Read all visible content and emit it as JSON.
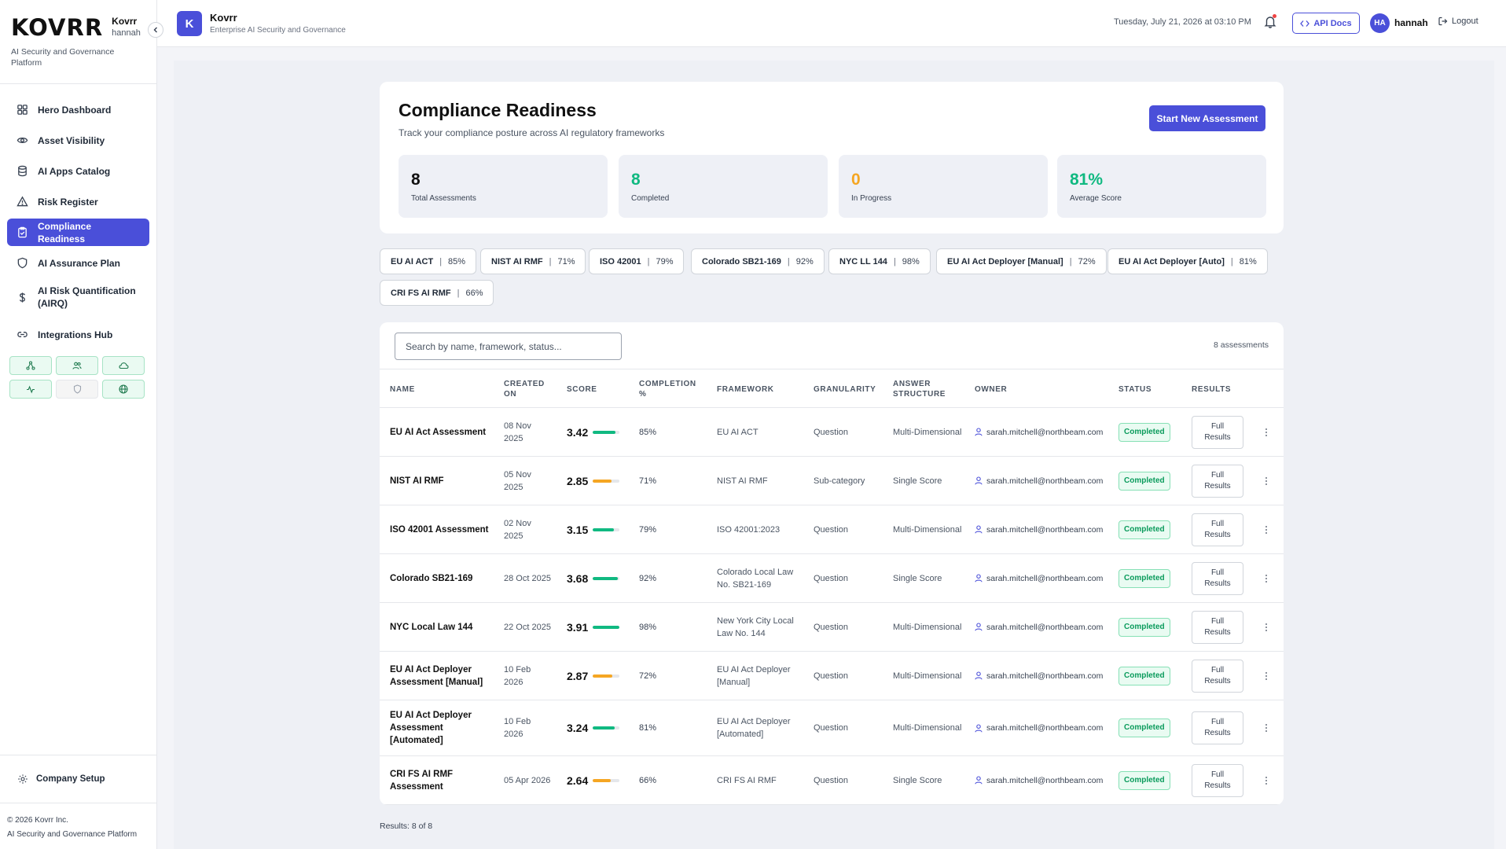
{
  "brand": {
    "logo": "KOVRR",
    "org": "Kovrr",
    "user": "hannah",
    "subtitle": "AI Security and Governance Platform"
  },
  "sidebar": {
    "items": [
      {
        "label": "Hero Dashboard",
        "icon": "grid-icon"
      },
      {
        "label": "Asset Visibility",
        "icon": "eye-icon"
      },
      {
        "label": "AI Apps Catalog",
        "icon": "database-icon"
      },
      {
        "label": "Risk Register",
        "icon": "warning-icon"
      },
      {
        "label": "Compliance Readiness",
        "icon": "clipboard-check-icon",
        "active": true
      },
      {
        "label": "AI Assurance Plan",
        "icon": "shield-icon"
      },
      {
        "label": "AI Risk Quantification (AIRQ)",
        "icon": "dollar-icon"
      },
      {
        "label": "Integrations Hub",
        "icon": "link-icon"
      }
    ],
    "quick_icons": [
      "network-icon",
      "users-icon",
      "cloud-icon",
      "activity-icon",
      "shield-icon",
      "globe-icon"
    ],
    "setup_label": "Company Setup",
    "footer_copyright": "© 2026 Kovrr Inc.",
    "footer_platform": "AI Security and Governance Platform"
  },
  "header": {
    "app_badge": "K",
    "app_title": "Kovrr",
    "app_subtitle": "Enterprise AI Security and Governance",
    "datetime": "Tuesday, July 21, 2026 at 03:10 PM",
    "api_docs": "API Docs",
    "avatar_initials": "HA",
    "user": "hannah",
    "logout": "Logout"
  },
  "page": {
    "title": "Compliance Readiness",
    "subtitle": "Track your compliance posture across AI regulatory frameworks",
    "start_button": "Start New Assessment"
  },
  "stats": [
    {
      "value": "8",
      "label": "Total Assessments",
      "color": "#111111"
    },
    {
      "value": "8",
      "label": "Completed",
      "color": "#10b981"
    },
    {
      "value": "0",
      "label": "In Progress",
      "color": "#f5a623"
    },
    {
      "value": "81%",
      "label": "Average Score",
      "color": "#10b981"
    }
  ],
  "frameworks": [
    {
      "name": "EU AI ACT",
      "pct": "85%"
    },
    {
      "name": "NIST AI RMF",
      "pct": "71%"
    },
    {
      "name": "ISO 42001",
      "pct": "79%"
    },
    {
      "name": "Colorado SB21-169",
      "pct": "92%"
    },
    {
      "name": "NYC LL 144",
      "pct": "98%"
    },
    {
      "name": "EU AI Act Deployer [Manual]",
      "pct": "72%"
    },
    {
      "name": "EU AI Act Deployer [Auto]",
      "pct": "81%"
    },
    {
      "name": "CRI FS AI RMF",
      "pct": "66%"
    }
  ],
  "search": {
    "placeholder": "Search by name, framework, status..."
  },
  "assessment_count": "8 assessments",
  "columns": [
    "NAME",
    "CREATED ON",
    "SCORE",
    "COMPLETION %",
    "FRAMEWORK",
    "GRANULARITY",
    "ANSWER STRUCTURE",
    "OWNER",
    "STATUS",
    "RESULTS"
  ],
  "rows": [
    {
      "name": "EU AI Act Assessment",
      "created": "08 Nov 2025",
      "score": "3.42",
      "score_fraction": 0.85,
      "completion": "85%",
      "framework": "EU AI ACT",
      "granularity": "Question",
      "answer": "Multi-Dimensional",
      "owner": "sarah.mitchell@northbeam.com",
      "status": "Completed",
      "results": "Full Results"
    },
    {
      "name": "NIST AI RMF",
      "created": "05 Nov 2025",
      "score": "2.85",
      "score_fraction": 0.71,
      "completion": "71%",
      "framework": "NIST AI RMF",
      "granularity": "Sub-category",
      "answer": "Single Score",
      "owner": "sarah.mitchell@northbeam.com",
      "status": "Completed",
      "results": "Full Results"
    },
    {
      "name": "ISO 42001 Assessment",
      "created": "02 Nov 2025",
      "score": "3.15",
      "score_fraction": 0.79,
      "completion": "79%",
      "framework": "ISO 42001:2023",
      "granularity": "Question",
      "answer": "Multi-Dimensional",
      "owner": "sarah.mitchell@northbeam.com",
      "status": "Completed",
      "results": "Full Results"
    },
    {
      "name": "Colorado SB21-169",
      "created": "28 Oct 2025",
      "score": "3.68",
      "score_fraction": 0.92,
      "completion": "92%",
      "framework": "Colorado Local Law No. SB21-169",
      "granularity": "Question",
      "answer": "Single Score",
      "owner": "sarah.mitchell@northbeam.com",
      "status": "Completed",
      "results": "Full Results"
    },
    {
      "name": "NYC Local Law 144",
      "created": "22 Oct 2025",
      "score": "3.91",
      "score_fraction": 0.98,
      "completion": "98%",
      "framework": "New York City Local Law No. 144",
      "granularity": "Question",
      "answer": "Multi-Dimensional",
      "owner": "sarah.mitchell@northbeam.com",
      "status": "Completed",
      "results": "Full Results"
    },
    {
      "name": "EU AI Act Deployer Assessment [Manual]",
      "created": "10 Feb 2026",
      "score": "2.87",
      "score_fraction": 0.72,
      "completion": "72%",
      "framework": "EU AI Act Deployer [Manual]",
      "granularity": "Question",
      "answer": "Multi-Dimensional",
      "owner": "sarah.mitchell@northbeam.com",
      "status": "Completed",
      "results": "Full Results"
    },
    {
      "name": "EU AI Act Deployer Assessment [Automated]",
      "created": "10 Feb 2026",
      "score": "3.24",
      "score_fraction": 0.81,
      "completion": "81%",
      "framework": "EU AI Act Deployer [Automated]",
      "granularity": "Question",
      "answer": "Multi-Dimensional",
      "owner": "sarah.mitchell@northbeam.com",
      "status": "Completed",
      "results": "Full Results"
    },
    {
      "name": "CRI FS AI RMF Assessment",
      "created": "05 Apr 2026",
      "score": "2.64",
      "score_fraction": 0.66,
      "completion": "66%",
      "framework": "CRI FS AI RMF",
      "granularity": "Question",
      "answer": "Single Score",
      "owner": "sarah.mitchell@northbeam.com",
      "status": "Completed",
      "results": "Full Results"
    }
  ],
  "results_footer": "Results: 8 of 8",
  "colors": {
    "accent": "#4a4fd9",
    "success": "#10b981",
    "warning": "#f5a623"
  }
}
